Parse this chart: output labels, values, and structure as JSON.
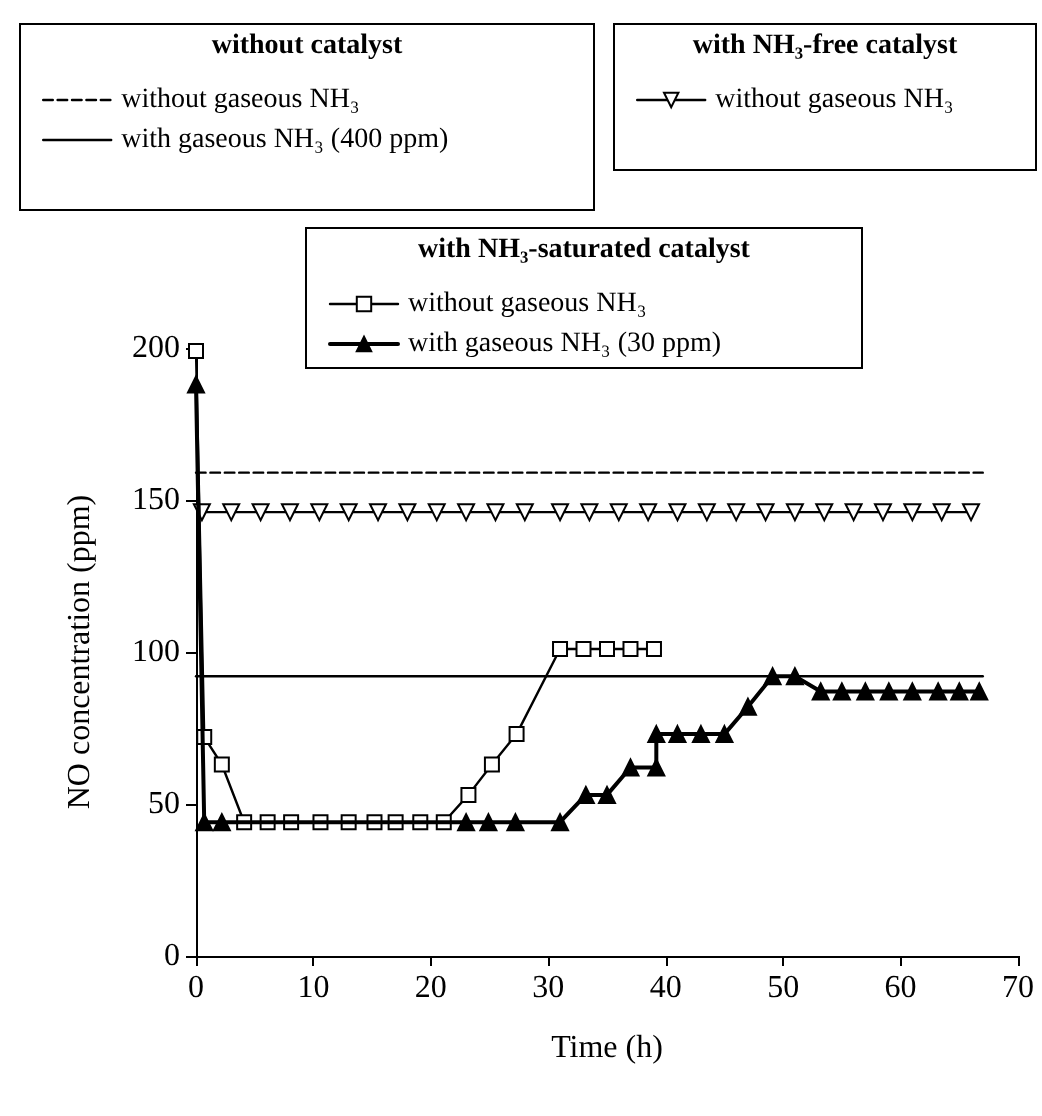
{
  "chart_data": {
    "type": "line",
    "xlabel": "Time (h)",
    "ylabel": "NO concentration (ppm)",
    "xlim": [
      0,
      70
    ],
    "xticks": [
      0,
      10,
      20,
      30,
      40,
      50,
      60,
      70
    ],
    "ylim": [
      0,
      200
    ],
    "yticks": [
      0,
      50,
      100,
      150,
      200
    ],
    "grid": false,
    "legend": "top",
    "annotations": [
      "without catalyst",
      "with NH₃-free catalyst",
      "with NH₃-saturated catalyst"
    ],
    "series": [
      {
        "name": "without gaseous NH₃",
        "color": "#000000",
        "line_style": "dashed",
        "marker": "none",
        "x": [
          0,
          67
        ],
        "values": [
          159,
          159
        ]
      },
      {
        "name": "with gaseous NH₃ (400 ppm)",
        "color": "#000000",
        "line_style": "solid",
        "marker": "none",
        "x": [
          0,
          67
        ],
        "values": [
          92,
          92
        ]
      },
      {
        "name": "without gaseous NH₃",
        "color": "#000000",
        "line_style": "solid",
        "marker": "triangle",
        "x": [
          0.5,
          3,
          5.5,
          8,
          10.5,
          13,
          15.5,
          18,
          20.5,
          23,
          25.5,
          28,
          31,
          33.5,
          36,
          38.5,
          41,
          43.5,
          46,
          48.5,
          51,
          53.5,
          56,
          58.5,
          61,
          63.5,
          66
        ],
        "values": [
          146,
          146,
          146,
          146,
          146,
          146,
          146,
          146,
          146,
          146,
          146,
          146,
          146,
          146,
          146,
          146,
          146,
          146,
          146,
          146,
          146,
          146,
          146,
          146,
          146,
          146,
          146
        ]
      },
      {
        "name": "without gaseous NH₃",
        "color": "#000000",
        "line_style": "solid",
        "marker": "square",
        "x": [
          0,
          0.7,
          2.2,
          4.1,
          6.1,
          8.1,
          10.6,
          13,
          15.2,
          17,
          19.1,
          21.1,
          23.2,
          25.2,
          27.3,
          31,
          33,
          35,
          37,
          39
        ],
        "values": [
          199,
          72,
          63,
          44,
          44,
          44,
          44,
          44,
          44,
          44,
          44,
          44,
          53,
          63,
          73,
          101,
          101,
          101,
          101,
          101
        ]
      },
      {
        "name": "with gaseous NH₃ (30 ppm)",
        "color": "#000000",
        "line_style": "solid",
        "marker": "triangle",
        "x": [
          0,
          0.7,
          2.2,
          23,
          24.9,
          27.2,
          31,
          33.2,
          35,
          37,
          39.2,
          39.2,
          41,
          43,
          45,
          47,
          49.1,
          51,
          53.2,
          55,
          57,
          59,
          61,
          63.2,
          65,
          66.7
        ],
        "values": [
          188,
          44,
          44,
          44,
          44,
          44,
          44,
          53,
          53,
          62,
          62,
          73,
          73,
          73,
          73,
          82,
          92,
          92,
          87,
          87,
          87,
          87,
          87,
          87,
          87,
          87
        ]
      }
    ]
  }
}
